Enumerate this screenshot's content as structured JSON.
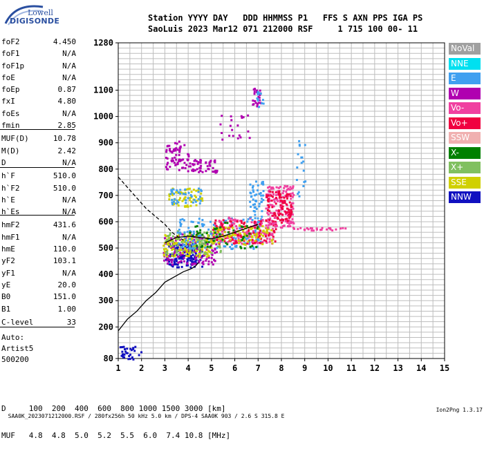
{
  "logo": {
    "line1": "Lowell",
    "line2": "DIGISONDE"
  },
  "header": {
    "row1": "Station YYYY DAY   DDD HHMMSS P1   FFS S AXN PPS IGA PS",
    "row2": "SaoLuis 2023 Mar12 071 212000 RSF     1 715 100 00- 11"
  },
  "params": [
    {
      "label": "foF2",
      "value": "4.450"
    },
    {
      "label": "foF1",
      "value": "N/A"
    },
    {
      "label": "foF1p",
      "value": "N/A"
    },
    {
      "label": "foE",
      "value": "N/A"
    },
    {
      "label": "foEp",
      "value": "0.87"
    },
    {
      "label": "fxI",
      "value": "4.80"
    },
    {
      "label": "foEs",
      "value": "N/A"
    },
    {
      "label": "fmin",
      "value": "2.85"
    },
    {
      "label": "MUF(D)",
      "value": "10.78"
    },
    {
      "label": "M(D)",
      "value": "2.42"
    },
    {
      "label": "D",
      "value": "N/A"
    },
    {
      "label": "h`F",
      "value": "510.0"
    },
    {
      "label": "h`F2",
      "value": "510.0"
    },
    {
      "label": "h`E",
      "value": "N/A"
    },
    {
      "label": "h`Es",
      "value": "N/A"
    },
    {
      "label": "hmF2",
      "value": "431.6"
    },
    {
      "label": "hmF1",
      "value": "N/A"
    },
    {
      "label": "hmE",
      "value": "110.0"
    },
    {
      "label": "yF2",
      "value": "103.1"
    },
    {
      "label": "yF1",
      "value": "N/A"
    },
    {
      "label": "yE",
      "value": "20.0"
    },
    {
      "label": "B0",
      "value": "151.0"
    },
    {
      "label": "B1",
      "value": "1.00"
    },
    {
      "label": "C-level",
      "value": "33"
    }
  ],
  "auto": {
    "line1": "Auto:",
    "line2": "Artist5",
    "line3": "500200"
  },
  "legend": [
    {
      "label": "NoVal",
      "color": "#a0a0a0"
    },
    {
      "label": "NNE",
      "color": "#00e0f0"
    },
    {
      "label": "E",
      "color": "#40a0f0"
    },
    {
      "label": "W",
      "color": "#b000b0"
    },
    {
      "label": "Vo-",
      "color": "#f040a0"
    },
    {
      "label": "Vo+",
      "color": "#f00040"
    },
    {
      "label": "SSW",
      "color": "#f0b0b0"
    },
    {
      "label": "X-",
      "color": "#008000"
    },
    {
      "label": "X+",
      "color": "#80c060"
    },
    {
      "label": "SSE",
      "color": "#d0d000"
    },
    {
      "label": "NNW",
      "color": "#1010c0"
    }
  ],
  "mufTable": {
    "row1": "D     100  200  400  600  800 1000 1500 3000 [km]",
    "row2": "MUF   4.8  4.8  5.0  5.2  5.5  6.0  7.4 10.8 [MHz]"
  },
  "footer": {
    "left": "SAA0K_2023071212000.RSF / 280fx256h 50 kHz 5.0 km / DPS-4 SAA0K 903 / 2.6 S 315.8 E",
    "right": "Ion2Png 1.3.17"
  },
  "chart_data": {
    "type": "scatter",
    "xlim": [
      1,
      15
    ],
    "ylim": [
      80,
      1280
    ],
    "x_ticks": [
      "1",
      "2",
      "3",
      "4",
      "5",
      "6",
      "7",
      "8",
      "9",
      "10",
      "11",
      "12",
      "13",
      "14",
      "15"
    ],
    "y_ticks": [
      "80",
      "200",
      "300",
      "400",
      "500",
      "600",
      "700",
      "800",
      "900",
      "1000",
      "1100",
      "1280"
    ],
    "grid": true,
    "clusters": [
      {
        "color": "#1010c0",
        "x": [
          3.0,
          4.6
        ],
        "y": [
          430,
          520
        ],
        "n": 160
      },
      {
        "color": "#b000b0",
        "x": [
          2.9,
          5.2
        ],
        "y": [
          440,
          560
        ],
        "n": 140
      },
      {
        "color": "#d0d000",
        "x": [
          2.9,
          5.0
        ],
        "y": [
          470,
          560
        ],
        "n": 120
      },
      {
        "color": "#80c060",
        "x": [
          3.0,
          5.5
        ],
        "y": [
          480,
          570
        ],
        "n": 90
      },
      {
        "color": "#40a0f0",
        "x": [
          3.5,
          7.2
        ],
        "y": [
          500,
          620
        ],
        "n": 140
      },
      {
        "color": "#f040a0",
        "x": [
          5.0,
          7.6
        ],
        "y": [
          520,
          620
        ],
        "n": 140
      },
      {
        "color": "#f00040",
        "x": [
          5.0,
          7.8
        ],
        "y": [
          520,
          610
        ],
        "n": 110
      },
      {
        "color": "#d0d000",
        "x": [
          5.0,
          7.6
        ],
        "y": [
          515,
          590
        ],
        "n": 90
      },
      {
        "color": "#008000",
        "x": [
          4.0,
          7.0
        ],
        "y": [
          500,
          600
        ],
        "n": 50
      },
      {
        "color": "#f040a0",
        "x": [
          7.3,
          8.5
        ],
        "y": [
          580,
          740
        ],
        "n": 140
      },
      {
        "color": "#f00040",
        "x": [
          7.3,
          8.4
        ],
        "y": [
          600,
          720
        ],
        "n": 90
      },
      {
        "color": "#40a0f0",
        "x": [
          6.6,
          7.2
        ],
        "y": [
          600,
          760
        ],
        "n": 50
      },
      {
        "color": "#b000b0",
        "x": [
          3.0,
          5.2
        ],
        "y": [
          790,
          840
        ],
        "n": 80
      },
      {
        "color": "#b000b0",
        "x": [
          3.0,
          4.0
        ],
        "y": [
          840,
          910
        ],
        "n": 40
      },
      {
        "color": "#d0d000",
        "x": [
          3.0,
          4.6
        ],
        "y": [
          660,
          730
        ],
        "n": 60
      },
      {
        "color": "#40a0f0",
        "x": [
          3.2,
          4.6
        ],
        "y": [
          670,
          730
        ],
        "n": 40
      },
      {
        "color": "#b000b0",
        "x": [
          6.7,
          7.1
        ],
        "y": [
          1040,
          1110
        ],
        "n": 25
      },
      {
        "color": "#40a0f0",
        "x": [
          6.9,
          7.2
        ],
        "y": [
          1030,
          1100
        ],
        "n": 12
      },
      {
        "color": "#1010c0",
        "x": [
          1.0,
          2.0
        ],
        "y": [
          80,
          130
        ],
        "n": 30
      },
      {
        "color": "#b000b0",
        "x": [
          5.3,
          6.6
        ],
        "y": [
          900,
          1020
        ],
        "n": 20
      },
      {
        "color": "#f040a0",
        "x": [
          8.5,
          10.8
        ],
        "y": [
          570,
          580
        ],
        "n": 25
      },
      {
        "color": "#40a0f0",
        "x": [
          8.6,
          9.0
        ],
        "y": [
          680,
          930
        ],
        "n": 18
      }
    ],
    "trace_solid": {
      "x": [
        1.0,
        1.4,
        1.8,
        2.2,
        2.6,
        3.0,
        3.4,
        3.8,
        4.1,
        4.3,
        4.45
      ],
      "y": [
        185,
        230,
        260,
        300,
        330,
        370,
        390,
        410,
        420,
        430,
        445
      ]
    },
    "trace_dashed": {
      "x": [
        1.0,
        1.4,
        1.8,
        2.2,
        2.6,
        3.0,
        3.3,
        3.6,
        3.8
      ],
      "y": [
        770,
        730,
        690,
        650,
        620,
        590,
        560,
        540,
        530
      ]
    },
    "trace_f": {
      "x": [
        3.0,
        3.5,
        4.0,
        4.5,
        5.0,
        5.5,
        6.0,
        6.5,
        7.0
      ],
      "y": [
        520,
        540,
        545,
        540,
        535,
        545,
        560,
        575,
        590
      ]
    }
  }
}
